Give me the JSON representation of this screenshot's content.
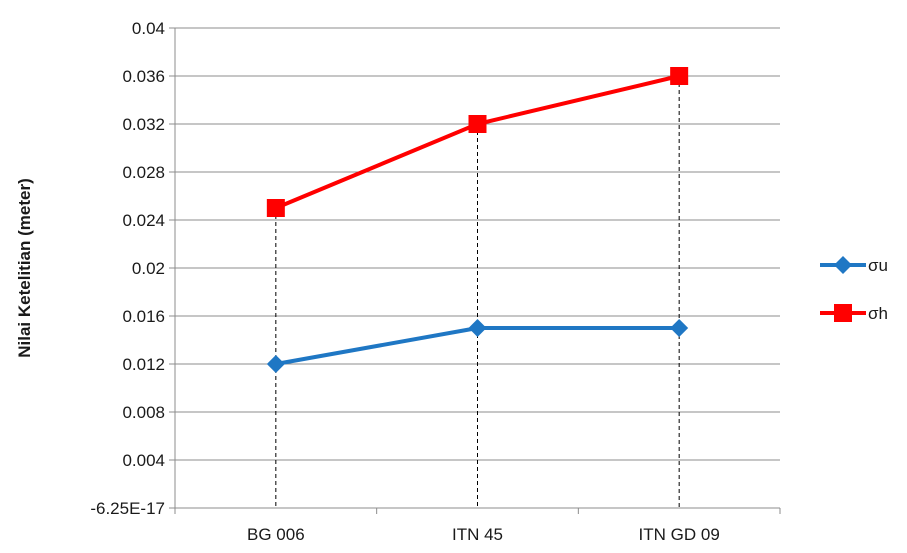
{
  "chart_data": {
    "type": "line",
    "categories": [
      "BG 006",
      "ITN 45",
      "ITN GD 09"
    ],
    "series": [
      {
        "name": "σu",
        "values": [
          0.012,
          0.015,
          0.015
        ],
        "color": "#1f77c4",
        "marker": "diamond"
      },
      {
        "name": "σh",
        "values": [
          0.025,
          0.032,
          0.036
        ],
        "color": "#ff0000",
        "marker": "square"
      }
    ],
    "title": "",
    "xlabel": "",
    "ylabel": "Nilai Ketelitian (meter)",
    "ylim": [
      0,
      0.04
    ],
    "y_ticks": [
      0,
      0.004,
      0.008,
      0.012,
      0.016,
      0.02,
      0.024,
      0.028,
      0.032,
      0.036,
      0.04
    ],
    "y_tick_labels": [
      "-6.25E-17",
      "0.004",
      "0.008",
      "0.012",
      "0.016",
      "0.02",
      "0.024",
      "0.028",
      "0.032",
      "0.036",
      "0.04"
    ],
    "grid": true,
    "drop_lines": true,
    "legend_position": "right"
  }
}
